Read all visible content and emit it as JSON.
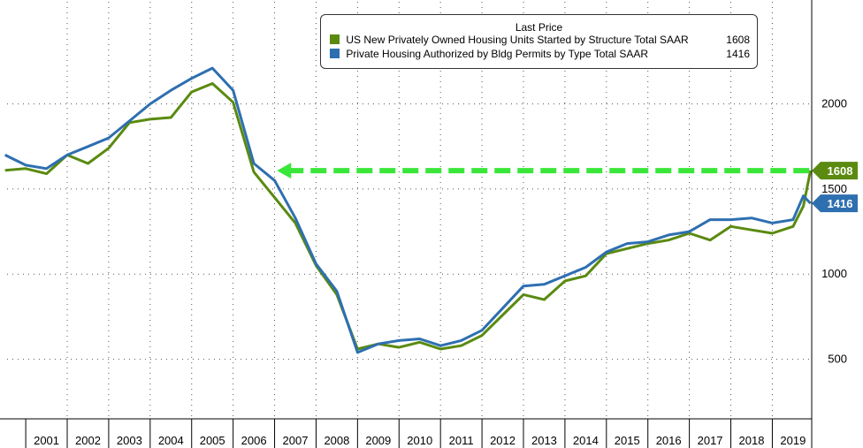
{
  "chart_data": {
    "type": "line",
    "legend": {
      "title": "Last Price",
      "placement": "top-center"
    },
    "x_ticks": [
      "2001",
      "2002",
      "2003",
      "2004",
      "2005",
      "2006",
      "2007",
      "2008",
      "2009",
      "2010",
      "2011",
      "2012",
      "2013",
      "2014",
      "2015",
      "2016",
      "2017",
      "2018",
      "2019"
    ],
    "y_ticks": [
      500,
      1000,
      1500,
      2000
    ],
    "ylim": [
      150,
      2600
    ],
    "xlim": [
      2000.5,
      2020.0
    ],
    "grid": true,
    "series": [
      {
        "name": "US New Privately Owned Housing Units Started by Structure Total SAAR",
        "last_value": "1608",
        "color": "#5a8a10",
        "x": [
          2000.5,
          2001.0,
          2001.5,
          2002.0,
          2002.5,
          2003.0,
          2003.5,
          2004.0,
          2004.5,
          2005.0,
          2005.5,
          2006.0,
          2006.5,
          2007.0,
          2007.5,
          2008.0,
          2008.5,
          2009.0,
          2009.5,
          2010.0,
          2010.5,
          2011.0,
          2011.5,
          2012.0,
          2012.5,
          2013.0,
          2013.5,
          2014.0,
          2014.5,
          2015.0,
          2015.5,
          2016.0,
          2016.5,
          2017.0,
          2017.5,
          2018.0,
          2018.5,
          2019.0,
          2019.5,
          2019.75,
          2019.92
        ],
        "y": [
          1610,
          1620,
          1590,
          1700,
          1650,
          1740,
          1890,
          1910,
          1920,
          2070,
          2120,
          2010,
          1600,
          1450,
          1300,
          1050,
          880,
          560,
          590,
          570,
          600,
          560,
          580,
          640,
          760,
          880,
          850,
          960,
          990,
          1120,
          1150,
          1180,
          1200,
          1240,
          1200,
          1280,
          1260,
          1240,
          1280,
          1400,
          1608
        ]
      },
      {
        "name": "Private Housing Authorized by Bldg Permits by Type Total SAAR",
        "last_value": "1416",
        "color": "#2e6fb0",
        "x": [
          2000.5,
          2001.0,
          2001.5,
          2002.0,
          2002.5,
          2003.0,
          2003.5,
          2004.0,
          2004.5,
          2005.0,
          2005.5,
          2006.0,
          2006.5,
          2007.0,
          2007.5,
          2008.0,
          2008.5,
          2009.0,
          2009.5,
          2010.0,
          2010.5,
          2011.0,
          2011.5,
          2012.0,
          2012.5,
          2013.0,
          2013.5,
          2014.0,
          2014.5,
          2015.0,
          2015.5,
          2016.0,
          2016.5,
          2017.0,
          2017.5,
          2018.0,
          2018.5,
          2019.0,
          2019.5,
          2019.75,
          2019.92
        ],
        "y": [
          1700,
          1640,
          1620,
          1700,
          1750,
          1800,
          1900,
          2000,
          2080,
          2150,
          2210,
          2080,
          1650,
          1550,
          1330,
          1060,
          900,
          540,
          590,
          610,
          620,
          580,
          610,
          670,
          800,
          930,
          940,
          990,
          1040,
          1130,
          1180,
          1190,
          1230,
          1250,
          1320,
          1320,
          1330,
          1300,
          1320,
          1460,
          1416
        ]
      }
    ],
    "annotation": {
      "label": "1608",
      "value": 1608,
      "x_start": 2007.1,
      "x_end": 2019.92
    },
    "bounds": {
      "x_min": 2000.25,
      "x_max": 2020.0,
      "y_min": 150,
      "y_max": 2600
    }
  }
}
